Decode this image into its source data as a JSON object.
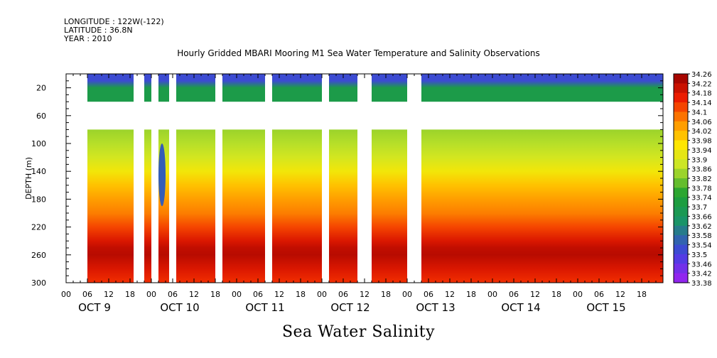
{
  "header": {
    "longitude": "LONGITUDE : 122W(-122)",
    "latitude": "LATITUDE : 36.8N",
    "year": "YEAR : 2010"
  },
  "chart_data": {
    "type": "heatmap",
    "title": "Hourly Gridded MBARI Mooring M1 Sea Water Temperature and Salinity Observations",
    "footer_label": "Sea Water Salinity",
    "ylabel": "DEPTH (m)",
    "xlabel": "",
    "x_unit": "hours since OCT 9 00:00",
    "xlim": [
      0,
      168
    ],
    "ylim": [
      300,
      0
    ],
    "y_ticks": [
      20,
      60,
      100,
      140,
      180,
      220,
      260,
      300
    ],
    "x_hour_labels": [
      "00",
      "06",
      "12",
      "18",
      "00",
      "06",
      "12",
      "18",
      "00",
      "06",
      "12",
      "18",
      "00",
      "06",
      "12",
      "18",
      "00",
      "06",
      "12",
      "18",
      "00",
      "06",
      "12",
      "18",
      "00",
      "06",
      "12",
      "18"
    ],
    "x_day_labels": [
      "OCT 9",
      "OCT 10",
      "OCT 11",
      "OCT 12",
      "OCT 13",
      "OCT 14",
      "OCT 15"
    ],
    "colorbar": {
      "min": 33.38,
      "max": 34.26,
      "labels": [
        "34.26",
        "34.22",
        "34.18",
        "34.14",
        "34.1",
        "34.06",
        "34.02",
        "33.98",
        "33.94",
        "33.9",
        "33.86",
        "33.82",
        "33.78",
        "33.74",
        "33.7",
        "33.66",
        "33.62",
        "33.58",
        "33.54",
        "33.5",
        "33.46",
        "33.42",
        "33.38"
      ]
    },
    "profile": {
      "depth": [
        0,
        10,
        20,
        40,
        80,
        100,
        120,
        140,
        160,
        180,
        200,
        220,
        240,
        250,
        260,
        280,
        300
      ],
      "salinity": [
        33.52,
        33.52,
        33.7,
        33.7,
        33.84,
        33.86,
        33.89,
        33.94,
        34.0,
        34.04,
        34.07,
        34.12,
        34.18,
        34.21,
        34.22,
        34.18,
        34.14
      ]
    },
    "data_gaps_hours": [
      [
        0,
        6
      ],
      [
        19,
        22
      ],
      [
        24,
        26
      ],
      [
        29,
        31
      ],
      [
        42,
        44
      ],
      [
        56,
        58
      ],
      [
        72,
        74
      ],
      [
        82,
        86
      ],
      [
        96,
        100
      ]
    ],
    "low_salinity_anomaly": {
      "hour": 27,
      "depth_range": [
        100,
        190
      ],
      "salinity": 33.55
    }
  }
}
